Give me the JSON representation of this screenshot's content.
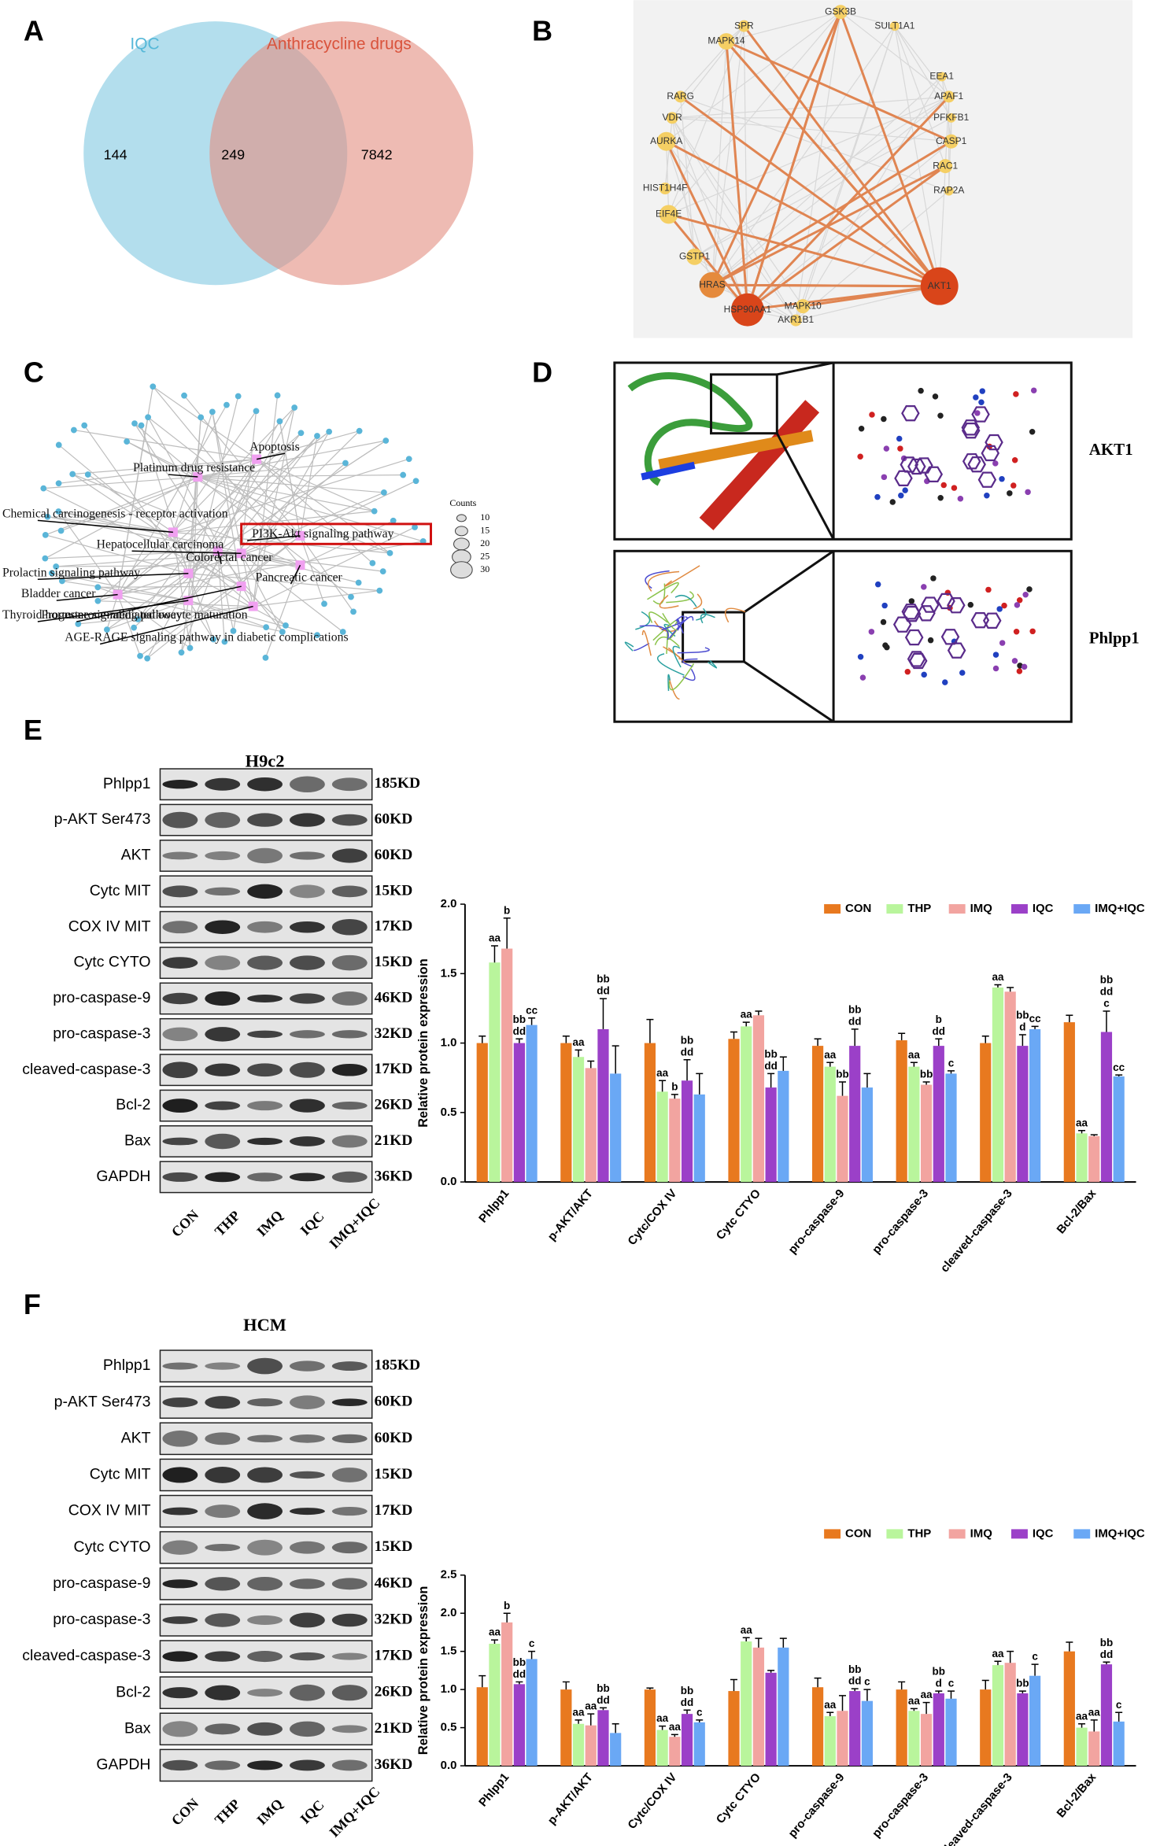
{
  "panel_labels": [
    "A",
    "B",
    "C",
    "D",
    "E",
    "F"
  ],
  "venn": {
    "sets": [
      "IQC",
      "Anthracycline drugs"
    ],
    "counts": [
      144,
      249,
      7842
    ]
  },
  "network": {
    "nodes": [
      "SPR",
      "GSK3B",
      "SULT1A1",
      "MAPK14",
      "RARG",
      "EEA1",
      "APAF1",
      "VDR",
      "PFKFB1",
      "AURKA",
      "CASP1",
      "RAC1",
      "RAP2A",
      "HIST1H4F",
      "EIF4E",
      "GSTP1",
      "HRAS",
      "AKT1",
      "HSP90AA1",
      "MAPK10",
      "AKR1B1"
    ]
  },
  "enrichment": {
    "pathways": [
      "Apoptosis",
      "Platinum drug resistance",
      "Chemical carcinogenesis - receptor activation",
      "PI3K-Akt signaling pathway",
      "Hepatocellular carcinoma",
      "Colorectal cancer",
      "Prolactin signaling pathway",
      "Pancreatic cancer",
      "Bladder cancer",
      "Thyroid hormone signaling pathway",
      "Progesterone-mediated oocyte maturation",
      "AGE-RAGE signaling pathway in diabetic complications"
    ],
    "legend_title": "Counts",
    "legend_sizes": [
      10,
      15,
      20,
      25,
      30
    ]
  },
  "docking": {
    "proteins": [
      "AKT1",
      "Phlpp1"
    ]
  },
  "blots": [
    {
      "cell": "H9c2",
      "rows": [
        {
          "protein": "Phlpp1",
          "size": "185KD"
        },
        {
          "protein": "p-AKT Ser473",
          "size": "60KD"
        },
        {
          "protein": "AKT",
          "size": "60KD"
        },
        {
          "protein": "Cytc MIT",
          "size": "15KD"
        },
        {
          "protein": "COX IV MIT",
          "size": "17KD"
        },
        {
          "protein": "Cytc CYTO",
          "size": "15KD"
        },
        {
          "protein": "pro-caspase-9",
          "size": "46KD"
        },
        {
          "protein": "pro-caspase-3",
          "size": "32KD"
        },
        {
          "protein": "cleaved-caspase-3",
          "size": "17KD"
        },
        {
          "protein": "Bcl-2",
          "size": "26KD"
        },
        {
          "protein": "Bax",
          "size": "21KD"
        },
        {
          "protein": "GAPDH",
          "size": "36KD"
        }
      ],
      "lanes": [
        "CON",
        "THP",
        "IMQ",
        "IQC",
        "IMQ+IQC"
      ]
    },
    {
      "cell": "HCM",
      "rows": [
        {
          "protein": "Phlpp1",
          "size": "185KD"
        },
        {
          "protein": "p-AKT Ser473",
          "size": "60KD"
        },
        {
          "protein": "AKT",
          "size": "60KD"
        },
        {
          "protein": "Cytc MIT",
          "size": "15KD"
        },
        {
          "protein": "COX IV MIT",
          "size": "17KD"
        },
        {
          "protein": "Cytc CYTO",
          "size": "15KD"
        },
        {
          "protein": "pro-caspase-9",
          "size": "46KD"
        },
        {
          "protein": "pro-caspase-3",
          "size": "32KD"
        },
        {
          "protein": "cleaved-caspase-3",
          "size": "17KD"
        },
        {
          "protein": "Bcl-2",
          "size": "26KD"
        },
        {
          "protein": "Bax",
          "size": "21KD"
        },
        {
          "protein": "GAPDH",
          "size": "36KD"
        }
      ],
      "lanes": [
        "CON",
        "THP",
        "IMQ",
        "IQC",
        "IMQ+IQC"
      ]
    }
  ],
  "chart_data": [
    {
      "type": "bar",
      "y_label": "Relative protein expression",
      "categories": [
        "Phlpp1",
        "p-AKT/AKT",
        "Cytc/COX IV",
        "Cytc CTYO",
        "pro-caspase-9",
        "pro-caspase-3",
        "cleaved-caspase-3",
        "Bcl-2/Bax"
      ],
      "ylim": [
        0,
        2
      ],
      "yticks": [
        {
          "value": 0,
          "label": "0.0"
        },
        0.5,
        {
          "value": 1,
          "label": "1.0"
        },
        1.5,
        {
          "value": 2,
          "label": "2.0"
        }
      ],
      "series": [
        {
          "name": "CON",
          "color": "#e8791f",
          "values": [
            1.0,
            1.0,
            1.0,
            1.03,
            0.98,
            1.02,
            1.0,
            1.15
          ],
          "errors": [
            0.05,
            0.05,
            0.17,
            0.05,
            0.05,
            0.05,
            0.05,
            0.05
          ]
        },
        {
          "name": "THP",
          "color": "#b9f59c",
          "values": [
            1.58,
            0.9,
            0.65,
            1.12,
            0.83,
            0.83,
            1.4,
            0.35
          ],
          "errors": [
            0.12,
            0.05,
            0.08,
            0.03,
            0.03,
            0.03,
            0.02,
            0.02
          ],
          "labels": [
            [
              "aa"
            ],
            [
              "aa"
            ],
            [
              "aa"
            ],
            [
              "aa"
            ],
            [
              "aa"
            ],
            [
              "aa"
            ],
            [
              "aa"
            ],
            [
              "aa"
            ]
          ]
        },
        {
          "name": "IMQ",
          "color": "#f2a4a0",
          "values": [
            1.68,
            0.82,
            0.6,
            1.2,
            0.62,
            0.7,
            1.37,
            0.33
          ],
          "errors": [
            0.22,
            0.05,
            0.03,
            0.03,
            0.1,
            0.02,
            0.03,
            0.01
          ],
          "labels": [
            [
              "b"
            ],
            null,
            [
              "b"
            ],
            null,
            [
              "bb"
            ],
            [
              "bb"
            ],
            null,
            null
          ]
        },
        {
          "name": "IQC",
          "color": "#9b40c8",
          "values": [
            1.0,
            1.1,
            0.73,
            0.68,
            0.98,
            0.98,
            0.98,
            1.08
          ],
          "errors": [
            0.03,
            0.22,
            0.15,
            0.1,
            0.12,
            0.05,
            0.08,
            0.15
          ],
          "labels": [
            [
              "bb",
              "dd"
            ],
            [
              "bb",
              "dd"
            ],
            [
              "bb",
              "dd"
            ],
            [
              "bb",
              "dd"
            ],
            [
              "bb",
              "dd"
            ],
            [
              "b",
              "dd"
            ],
            [
              "bb",
              "d"
            ],
            [
              "bb",
              "dd",
              "c"
            ]
          ]
        },
        {
          "name": "IMQ+IQC",
          "color": "#6aa8f5",
          "values": [
            1.13,
            0.78,
            0.63,
            0.8,
            0.68,
            0.78,
            1.1,
            0.76
          ],
          "errors": [
            0.05,
            0.2,
            0.15,
            0.1,
            0.1,
            0.02,
            0.02,
            0.01
          ],
          "labels": [
            [
              "cc"
            ],
            null,
            null,
            null,
            null,
            [
              "c"
            ],
            [
              "cc"
            ],
            [
              "cc"
            ]
          ]
        }
      ]
    },
    {
      "type": "bar",
      "y_label": "Relative protein expression",
      "categories": [
        "Phlpp1",
        "p-AKT/AKT",
        "Cytc/COX IV",
        "Cytc CTYO",
        "pro-caspase-9",
        "pro-caspase-3",
        "cleaved-caspase-3",
        "Bcl-2/Bax"
      ],
      "ylim": [
        0,
        2.5
      ],
      "yticks": [
        {
          "value": 0,
          "label": "0.0"
        },
        0.5,
        {
          "value": 1,
          "label": "1.0"
        },
        1.5,
        {
          "value": 2,
          "label": "2.0"
        },
        2.5
      ],
      "series": [
        {
          "name": "CON",
          "color": "#e8791f",
          "values": [
            1.03,
            1.0,
            1.0,
            0.98,
            1.03,
            1.0,
            1.0,
            1.5
          ],
          "errors": [
            0.15,
            0.1,
            0.02,
            0.15,
            0.12,
            0.1,
            0.12,
            0.12
          ]
        },
        {
          "name": "THP",
          "color": "#b9f59c",
          "values": [
            1.6,
            0.55,
            0.47,
            1.63,
            0.65,
            0.72,
            1.32,
            0.5
          ],
          "errors": [
            0.05,
            0.05,
            0.05,
            0.05,
            0.05,
            0.03,
            0.05,
            0.05
          ],
          "labels": [
            [
              "aa"
            ],
            [
              "aa"
            ],
            [
              "aa"
            ],
            [
              "aa"
            ],
            [
              "aa"
            ],
            [
              "aa"
            ],
            [
              "aa"
            ],
            [
              "aa"
            ]
          ]
        },
        {
          "name": "IMQ",
          "color": "#f2a4a0",
          "values": [
            1.88,
            0.53,
            0.38,
            1.55,
            0.72,
            0.68,
            1.35,
            0.45
          ],
          "errors": [
            0.12,
            0.15,
            0.03,
            0.12,
            0.2,
            0.15,
            0.15,
            0.15
          ],
          "labels": [
            [
              "b"
            ],
            [
              "aa"
            ],
            [
              "aa"
            ],
            null,
            null,
            [
              "aa"
            ],
            null,
            [
              "aa"
            ]
          ]
        },
        {
          "name": "IQC",
          "color": "#9b40c8",
          "values": [
            1.07,
            0.73,
            0.68,
            1.22,
            0.98,
            0.95,
            0.95,
            1.33
          ],
          "errors": [
            0.03,
            0.03,
            0.05,
            0.03,
            0.03,
            0.03,
            0.03,
            0.03
          ],
          "labels": [
            [
              "bb",
              "dd"
            ],
            [
              "bb",
              "dd"
            ],
            [
              "bb",
              "dd"
            ],
            null,
            [
              "bb",
              "dd"
            ],
            [
              "bb",
              "d"
            ],
            [
              "bb"
            ],
            [
              "bb",
              "dd"
            ]
          ]
        },
        {
          "name": "IMQ+IQC",
          "color": "#6aa8f5",
          "values": [
            1.4,
            0.43,
            0.57,
            1.55,
            0.85,
            0.88,
            1.18,
            0.58
          ],
          "errors": [
            0.1,
            0.12,
            0.03,
            0.12,
            0.15,
            0.1,
            0.15,
            0.12
          ],
          "labels": [
            [
              "c"
            ],
            null,
            [
              "c"
            ],
            null,
            [
              "c"
            ],
            [
              "c"
            ],
            [
              "c"
            ],
            [
              "c"
            ]
          ]
        }
      ]
    }
  ]
}
